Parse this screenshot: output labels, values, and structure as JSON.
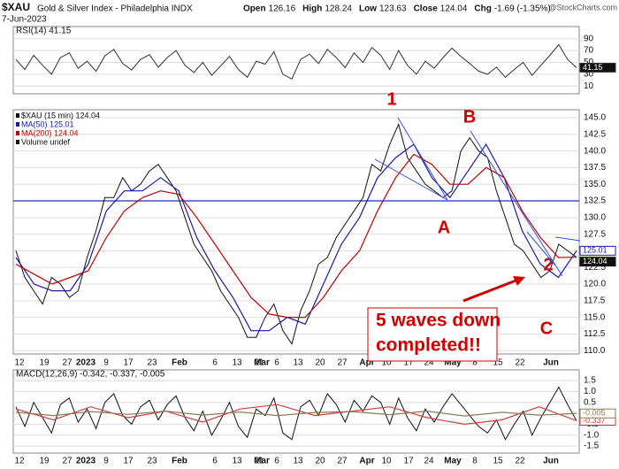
{
  "header": {
    "symbol": "$XAU",
    "name": "Gold & Silver Index - Philadelphia INDX",
    "date": "7-Jun-2023",
    "quote": [
      {
        "label": "Open",
        "value": 126.16
      },
      {
        "label": "High",
        "value": 128.24
      },
      {
        "label": "Low",
        "value": 123.63
      },
      {
        "label": "Close",
        "value": 124.04
      },
      {
        "label": "Chg",
        "value": "-1.69 (-1.35%)"
      }
    ],
    "credit": "@StockCharts.com"
  },
  "chart_data": [
    {
      "type": "line",
      "title": "RSI(14) 41.15",
      "ylim": [
        0,
        100
      ],
      "yticks": [
        10,
        30,
        50,
        70,
        90
      ],
      "grid": true,
      "series": [
        {
          "color": "#333333",
          "values": [
            55,
            38,
            62,
            45,
            30,
            58,
            66,
            40,
            52,
            35,
            61,
            72,
            48,
            37,
            55,
            63,
            42,
            58,
            70,
            45,
            33,
            50,
            28,
            44,
            60,
            38,
            25,
            52,
            47,
            68,
            30,
            22,
            55,
            64,
            48,
            72,
            58,
            41,
            66,
            50,
            75,
            62,
            38,
            70,
            45,
            30,
            52,
            40,
            58,
            74,
            60,
            48,
            35,
            30,
            42,
            25,
            38,
            50,
            28,
            45,
            62,
            80,
            55,
            41.15
          ]
        }
      ]
    },
    {
      "type": "line",
      "ylim": [
        109.5,
        146.2
      ],
      "yticks": [
        {
          "value": 110,
          "label": "110.0"
        },
        {
          "value": 112.5,
          "label": "112.5"
        },
        {
          "value": 115,
          "label": "115.0"
        },
        {
          "value": 117.5,
          "label": "117.5"
        },
        {
          "value": 120,
          "label": "120.0"
        },
        {
          "value": 122.5,
          "label": "122.5"
        },
        {
          "value": 125,
          "label": "125.0"
        },
        {
          "value": 127.5,
          "label": "127.5"
        },
        {
          "value": 130,
          "label": "130.0"
        },
        {
          "value": 132.5,
          "label": "132.5"
        },
        {
          "value": 135,
          "label": "135.0"
        },
        {
          "value": 137.5,
          "label": "137.5"
        },
        {
          "value": 140,
          "label": "140.0"
        },
        {
          "value": 142.5,
          "label": "142.5"
        },
        {
          "value": 145,
          "label": "145.0"
        }
      ],
      "grid": true,
      "hline": 132.5,
      "xtick_labels": [
        "12",
        "19",
        "27",
        "2023",
        "9",
        "17",
        "23",
        "Feb",
        "6",
        "13",
        "21",
        "Mar",
        "6",
        "13",
        "20",
        "27",
        "Apr",
        "10",
        "17",
        "24",
        "May",
        "8",
        "15",
        "22",
        "Jun"
      ],
      "series": [
        {
          "name": "$XAU (15 min) 124.04",
          "color": "#111111",
          "values": [
            125,
            121,
            119,
            117,
            121,
            120,
            118,
            119,
            124,
            128,
            133,
            133,
            136,
            134,
            135,
            137,
            138,
            136,
            134,
            130,
            126,
            124,
            122,
            119,
            117,
            115,
            112,
            112,
            115,
            117,
            113,
            111,
            116,
            119,
            123,
            124,
            127,
            129,
            131,
            133,
            138,
            137,
            141,
            144,
            139,
            137,
            135,
            134,
            133,
            134,
            140,
            142,
            140,
            139,
            134,
            130,
            126,
            125,
            123,
            121,
            122,
            126,
            125,
            124.04
          ]
        },
        {
          "name": "MA(50) 125.01",
          "color": "#1a1aa6",
          "values": [
            124,
            120,
            119,
            119,
            123,
            131,
            134,
            134,
            136,
            134,
            127,
            122,
            118,
            113,
            113,
            115,
            114,
            120,
            126,
            130,
            136,
            139,
            141,
            136,
            133,
            137,
            141,
            136,
            128,
            123,
            121,
            125.01
          ]
        },
        {
          "name": "MA(200) 124.04",
          "color": "#c00000",
          "values": [
            123,
            121.5,
            120,
            121,
            122,
            127,
            131,
            133,
            134,
            133.5,
            130,
            126,
            122,
            118,
            115.5,
            115,
            115,
            118,
            122,
            125,
            131,
            136,
            139.5,
            138,
            135,
            135,
            137.5,
            136,
            131,
            127,
            124,
            124.04
          ]
        },
        {
          "name": "Volume undef",
          "color": "#111111",
          "values": []
        }
      ],
      "annotations": [
        "1",
        "B",
        "A",
        "2",
        "C"
      ],
      "callout": [
        "5 waves down",
        "completed!!"
      ]
    },
    {
      "type": "line",
      "title": "MACD(12,26,9) -0.342, -0.337, -0.005",
      "ylim": [
        -1.82,
        1.99
      ],
      "yticks": [
        {
          "value": -1.5,
          "label": "-1.5"
        },
        {
          "value": -1,
          "label": "-1.0"
        },
        {
          "value": -0.5,
          "label": "-0.5"
        },
        {
          "value": 0.5,
          "label": "0.5"
        },
        {
          "value": 1,
          "label": "1.0"
        },
        {
          "value": 1.5,
          "label": "1.5"
        }
      ],
      "grid": true,
      "series": [
        {
          "color": "#111111",
          "values": [
            0.3,
            -0.6,
            0.5,
            -0.2,
            -0.9,
            0.4,
            0.7,
            -0.4,
            0.2,
            -0.7,
            0.5,
            0.9,
            -0.1,
            -0.5,
            0.3,
            0.6,
            -0.3,
            0.4,
            0.8,
            -0.2,
            -0.8,
            0.1,
            -1.0,
            -0.3,
            0.5,
            -0.6,
            -1.1,
            0.2,
            -0.1,
            0.7,
            -0.9,
            -1.2,
            0.3,
            0.6,
            -0.1,
            0.9,
            0.4,
            -0.4,
            0.6,
            0.1,
            0.8,
            0.5,
            -0.5,
            0.7,
            -0.2,
            -0.8,
            0.2,
            -0.4,
            0.3,
            0.9,
            0.4,
            -0.1,
            -0.6,
            -0.9,
            -0.3,
            -1.2,
            -0.5,
            0.1,
            -1.0,
            -0.2,
            0.5,
            1.2,
            0.4,
            -0.342
          ]
        },
        {
          "color": "#d04040",
          "values": [
            0.2,
            -0.3,
            0.3,
            -0.2,
            0.1,
            -0.4,
            0.2,
            0.4,
            -0.1,
            0.1,
            0.3,
            -0.2,
            -0.5,
            -0.3,
            0.3,
            -0.337
          ]
        },
        {
          "color": "#8a7a5a",
          "values": [
            0.05,
            -0.1,
            0.08,
            -0.05,
            0.1,
            -0.08,
            0.06,
            -0.1,
            0.04,
            0.08,
            -0.06,
            0.1,
            -0.12,
            0.05,
            -0.08,
            -0.005
          ]
        }
      ]
    }
  ]
}
